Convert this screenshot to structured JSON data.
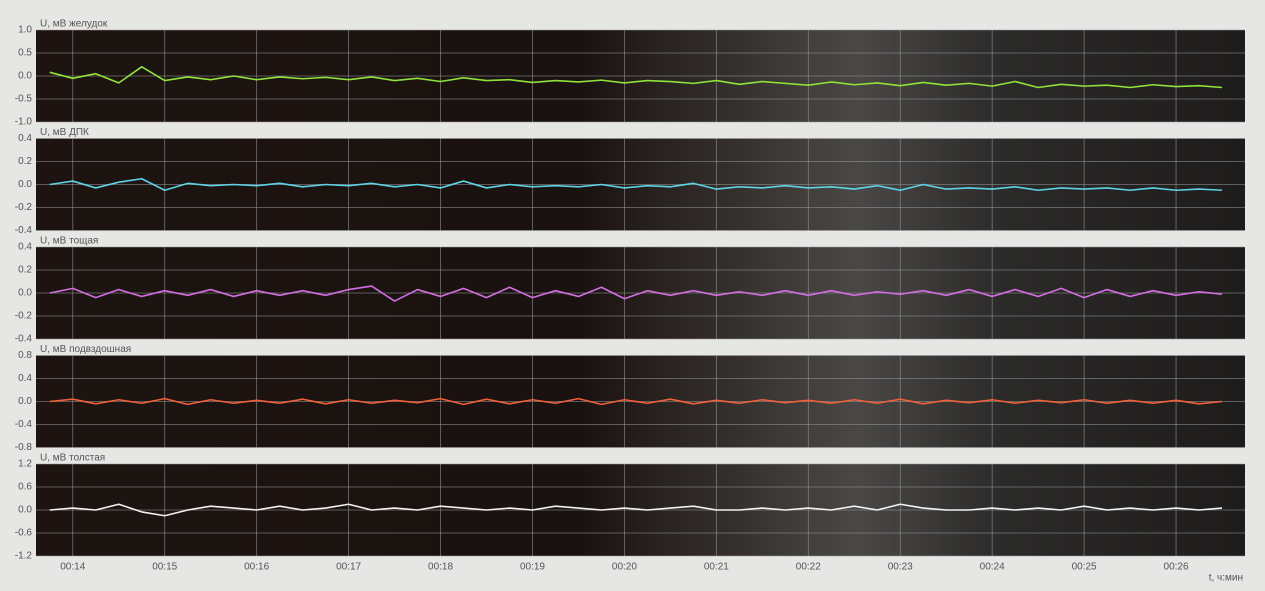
{
  "chart_data": [
    {
      "type": "line",
      "title": "U, мВ  желудок",
      "color": "#8fe33a",
      "x": [
        13.75,
        14,
        14.25,
        14.5,
        14.75,
        15,
        15.25,
        15.5,
        15.75,
        16,
        16.25,
        16.5,
        16.75,
        17,
        17.25,
        17.5,
        17.75,
        18,
        18.25,
        18.5,
        18.75,
        19,
        19.25,
        19.5,
        19.75,
        20,
        20.25,
        20.5,
        20.75,
        21,
        21.25,
        21.5,
        21.75,
        22,
        22.25,
        22.5,
        22.75,
        23,
        23.25,
        23.5,
        23.75,
        24,
        24.25,
        24.5,
        24.75,
        25,
        25.25,
        25.5,
        25.75,
        26,
        26.25,
        26.5
      ],
      "values": [
        0.08,
        -0.05,
        0.05,
        -0.15,
        0.2,
        -0.1,
        -0.02,
        -0.08,
        0.0,
        -0.08,
        -0.02,
        -0.06,
        -0.03,
        -0.08,
        -0.02,
        -0.1,
        -0.05,
        -0.12,
        -0.04,
        -0.1,
        -0.08,
        -0.14,
        -0.1,
        -0.13,
        -0.09,
        -0.15,
        -0.1,
        -0.12,
        -0.16,
        -0.1,
        -0.18,
        -0.12,
        -0.16,
        -0.2,
        -0.13,
        -0.19,
        -0.15,
        -0.21,
        -0.14,
        -0.2,
        -0.16,
        -0.22,
        -0.12,
        -0.25,
        -0.18,
        -0.22,
        -0.2,
        -0.25,
        -0.19,
        -0.23,
        -0.21,
        -0.25
      ],
      "xlim": [
        13.6,
        26.75
      ],
      "xticks": [
        14,
        15,
        16,
        17,
        18,
        19,
        20,
        21,
        22,
        23,
        24,
        25,
        26
      ],
      "ylim": [
        -1,
        1
      ],
      "yticks": [
        {
          "value": 1,
          "label": "1.0"
        },
        0.5,
        {
          "value": 0,
          "label": "0.0"
        },
        -0.5,
        {
          "value": -1,
          "label": "-1.0"
        }
      ],
      "grid": true
    },
    {
      "type": "line",
      "title": "U, мВ  ДПК",
      "color": "#5fd3e6",
      "x": [
        13.75,
        14,
        14.25,
        14.5,
        14.75,
        15,
        15.25,
        15.5,
        15.75,
        16,
        16.25,
        16.5,
        16.75,
        17,
        17.25,
        17.5,
        17.75,
        18,
        18.25,
        18.5,
        18.75,
        19,
        19.25,
        19.5,
        19.75,
        20,
        20.25,
        20.5,
        20.75,
        21,
        21.25,
        21.5,
        21.75,
        22,
        22.25,
        22.5,
        22.75,
        23,
        23.25,
        23.5,
        23.75,
        24,
        24.25,
        24.5,
        24.75,
        25,
        25.25,
        25.5,
        25.75,
        26,
        26.25,
        26.5
      ],
      "values": [
        0.0,
        0.03,
        -0.03,
        0.02,
        0.05,
        -0.05,
        0.01,
        -0.01,
        0.0,
        -0.01,
        0.01,
        -0.02,
        0.0,
        -0.01,
        0.01,
        -0.02,
        0.0,
        -0.03,
        0.03,
        -0.03,
        0.0,
        -0.02,
        -0.01,
        -0.02,
        0.0,
        -0.03,
        -0.01,
        -0.02,
        0.01,
        -0.04,
        -0.02,
        -0.03,
        -0.01,
        -0.03,
        -0.02,
        -0.04,
        -0.01,
        -0.05,
        0.0,
        -0.04,
        -0.03,
        -0.04,
        -0.02,
        -0.05,
        -0.03,
        -0.04,
        -0.03,
        -0.05,
        -0.03,
        -0.05,
        -0.04,
        -0.05
      ],
      "xlim": [
        13.6,
        26.75
      ],
      "xticks": [
        14,
        15,
        16,
        17,
        18,
        19,
        20,
        21,
        22,
        23,
        24,
        25,
        26
      ],
      "ylim": [
        -0.4,
        0.4
      ],
      "yticks": [
        0.4,
        0.2,
        {
          "value": 0,
          "label": "0.0"
        },
        -0.2,
        -0.4
      ],
      "grid": true
    },
    {
      "type": "line",
      "title": "U, мВ  тощая",
      "color": "#d36ee0",
      "x": [
        13.75,
        14,
        14.25,
        14.5,
        14.75,
        15,
        15.25,
        15.5,
        15.75,
        16,
        16.25,
        16.5,
        16.75,
        17,
        17.25,
        17.5,
        17.75,
        18,
        18.25,
        18.5,
        18.75,
        19,
        19.25,
        19.5,
        19.75,
        20,
        20.25,
        20.5,
        20.75,
        21,
        21.25,
        21.5,
        21.75,
        22,
        22.25,
        22.5,
        22.75,
        23,
        23.25,
        23.5,
        23.75,
        24,
        24.25,
        24.5,
        24.75,
        25,
        25.25,
        25.5,
        25.75,
        26,
        26.25,
        26.5
      ],
      "values": [
        0.0,
        0.04,
        -0.04,
        0.03,
        -0.03,
        0.02,
        -0.02,
        0.03,
        -0.03,
        0.02,
        -0.02,
        0.02,
        -0.02,
        0.03,
        0.06,
        -0.07,
        0.03,
        -0.03,
        0.04,
        -0.04,
        0.05,
        -0.04,
        0.02,
        -0.03,
        0.05,
        -0.05,
        0.02,
        -0.02,
        0.02,
        -0.02,
        0.01,
        -0.02,
        0.02,
        -0.02,
        0.02,
        -0.02,
        0.01,
        -0.01,
        0.02,
        -0.02,
        0.03,
        -0.03,
        0.03,
        -0.03,
        0.04,
        -0.04,
        0.03,
        -0.03,
        0.02,
        -0.02,
        0.01,
        -0.01
      ],
      "xlim": [
        13.6,
        26.75
      ],
      "xticks": [
        14,
        15,
        16,
        17,
        18,
        19,
        20,
        21,
        22,
        23,
        24,
        25,
        26
      ],
      "ylim": [
        -0.4,
        0.4
      ],
      "yticks": [
        0.4,
        0.2,
        {
          "value": 0,
          "label": "0.0"
        },
        -0.2,
        -0.4
      ],
      "grid": true
    },
    {
      "type": "line",
      "title": "U, мВ  подвздошная",
      "color": "#f0603a",
      "x": [
        13.75,
        14,
        14.25,
        14.5,
        14.75,
        15,
        15.25,
        15.5,
        15.75,
        16,
        16.25,
        16.5,
        16.75,
        17,
        17.25,
        17.5,
        17.75,
        18,
        18.25,
        18.5,
        18.75,
        19,
        19.25,
        19.5,
        19.75,
        20,
        20.25,
        20.5,
        20.75,
        21,
        21.25,
        21.5,
        21.75,
        22,
        22.25,
        22.5,
        22.75,
        23,
        23.25,
        23.5,
        23.75,
        24,
        24.25,
        24.5,
        24.75,
        25,
        25.25,
        25.5,
        25.75,
        26,
        26.25,
        26.5
      ],
      "values": [
        0.0,
        0.04,
        -0.04,
        0.03,
        -0.03,
        0.05,
        -0.05,
        0.03,
        -0.03,
        0.02,
        -0.03,
        0.04,
        -0.04,
        0.03,
        -0.03,
        0.02,
        -0.02,
        0.05,
        -0.05,
        0.04,
        -0.04,
        0.03,
        -0.03,
        0.05,
        -0.05,
        0.03,
        -0.03,
        0.04,
        -0.04,
        0.02,
        -0.03,
        0.03,
        -0.02,
        0.02,
        -0.03,
        0.03,
        -0.03,
        0.04,
        -0.04,
        0.02,
        -0.02,
        0.03,
        -0.03,
        0.02,
        -0.02,
        0.03,
        -0.03,
        0.02,
        -0.03,
        0.02,
        -0.04,
        0.0
      ],
      "xlim": [
        13.6,
        26.75
      ],
      "xticks": [
        14,
        15,
        16,
        17,
        18,
        19,
        20,
        21,
        22,
        23,
        24,
        25,
        26
      ],
      "ylim": [
        -0.8,
        0.8
      ],
      "yticks": [
        0.8,
        0.4,
        {
          "value": 0,
          "label": "0.0"
        },
        -0.4,
        -0.8
      ],
      "grid": true
    },
    {
      "type": "line",
      "title": "U, мВ  толстая",
      "color": "#f2f2f2",
      "xlabel": "t, ч:мин",
      "x": [
        13.75,
        14,
        14.25,
        14.5,
        14.75,
        15,
        15.25,
        15.5,
        15.75,
        16,
        16.25,
        16.5,
        16.75,
        17,
        17.25,
        17.5,
        17.75,
        18,
        18.25,
        18.5,
        18.75,
        19,
        19.25,
        19.5,
        19.75,
        20,
        20.25,
        20.5,
        20.75,
        21,
        21.25,
        21.5,
        21.75,
        22,
        22.25,
        22.5,
        22.75,
        23,
        23.25,
        23.5,
        23.75,
        24,
        24.25,
        24.5,
        24.75,
        25,
        25.25,
        25.5,
        25.75,
        26,
        26.25,
        26.5
      ],
      "values": [
        0.0,
        0.05,
        0.0,
        0.15,
        -0.05,
        -0.15,
        0.0,
        0.1,
        0.05,
        0.0,
        0.1,
        0.0,
        0.05,
        0.15,
        0.0,
        0.05,
        0.0,
        0.1,
        0.05,
        0.0,
        0.05,
        0.0,
        0.1,
        0.05,
        0.0,
        0.05,
        0.0,
        0.05,
        0.1,
        0.0,
        0.0,
        0.05,
        0.0,
        0.05,
        0.0,
        0.1,
        0.0,
        0.15,
        0.05,
        0.0,
        0.0,
        0.05,
        0.0,
        0.05,
        0.0,
        0.1,
        0.0,
        0.05,
        0.0,
        0.05,
        0.0,
        0.05
      ],
      "xlim": [
        13.6,
        26.75
      ],
      "xticks": [
        {
          "value": 14,
          "label": "00:14"
        },
        {
          "value": 15,
          "label": "00:15"
        },
        {
          "value": 16,
          "label": "00:16"
        },
        {
          "value": 17,
          "label": "00:17"
        },
        {
          "value": 18,
          "label": "00:18"
        },
        {
          "value": 19,
          "label": "00:19"
        },
        {
          "value": 20,
          "label": "00:20"
        },
        {
          "value": 21,
          "label": "00:21"
        },
        {
          "value": 22,
          "label": "00:22"
        },
        {
          "value": 23,
          "label": "00:23"
        },
        {
          "value": 24,
          "label": "00:24"
        },
        {
          "value": 25,
          "label": "00:25"
        },
        {
          "value": 26,
          "label": "00:26"
        }
      ],
      "ylim": [
        -1.2,
        1.2
      ],
      "yticks": [
        1.2,
        0.6,
        {
          "value": 0,
          "label": "0.0"
        },
        -0.6,
        -1.2
      ],
      "grid": true
    }
  ]
}
